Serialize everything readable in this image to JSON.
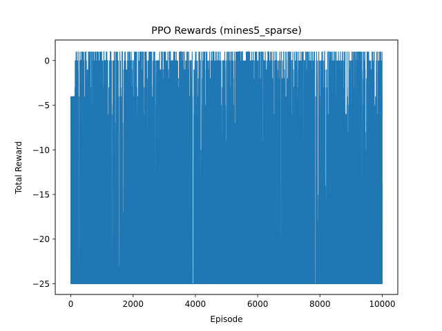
{
  "chart_data": {
    "type": "line",
    "title": "PPO Rewards (mines5_sparse)",
    "xlabel": "Episode",
    "ylabel": "Total Reward",
    "xlim": [
      -500,
      10500
    ],
    "ylim": [
      -26.2,
      2.3
    ],
    "x_ticks": [
      0,
      2000,
      4000,
      6000,
      8000,
      10000
    ],
    "x_tick_labels": [
      "0",
      "2000",
      "4000",
      "6000",
      "8000",
      "10000"
    ],
    "y_ticks": [
      0,
      -5,
      -10,
      -15,
      -20,
      -25
    ],
    "y_tick_labels": [
      "0",
      "−5",
      "−10",
      "−15",
      "−20",
      "−25"
    ],
    "grid": false,
    "series": [
      {
        "color": "#1f77b4",
        "x_range": [
          0,
          10000
        ],
        "num_points": 10001,
        "value_min": -25,
        "value_max": 1,
        "common_values": [
          -25,
          -4,
          0,
          1
        ],
        "mean_approx": -18.5,
        "notable_points": [
          {
            "x": 0,
            "y": -4
          },
          {
            "x": 100,
            "y": -4
          },
          {
            "x": 550,
            "y": -9
          },
          {
            "x": 2100,
            "y": -15
          },
          {
            "x": 2950,
            "y": -11
          },
          {
            "x": 4550,
            "y": -13
          },
          {
            "x": 10000,
            "y": -14
          }
        ]
      }
    ]
  }
}
